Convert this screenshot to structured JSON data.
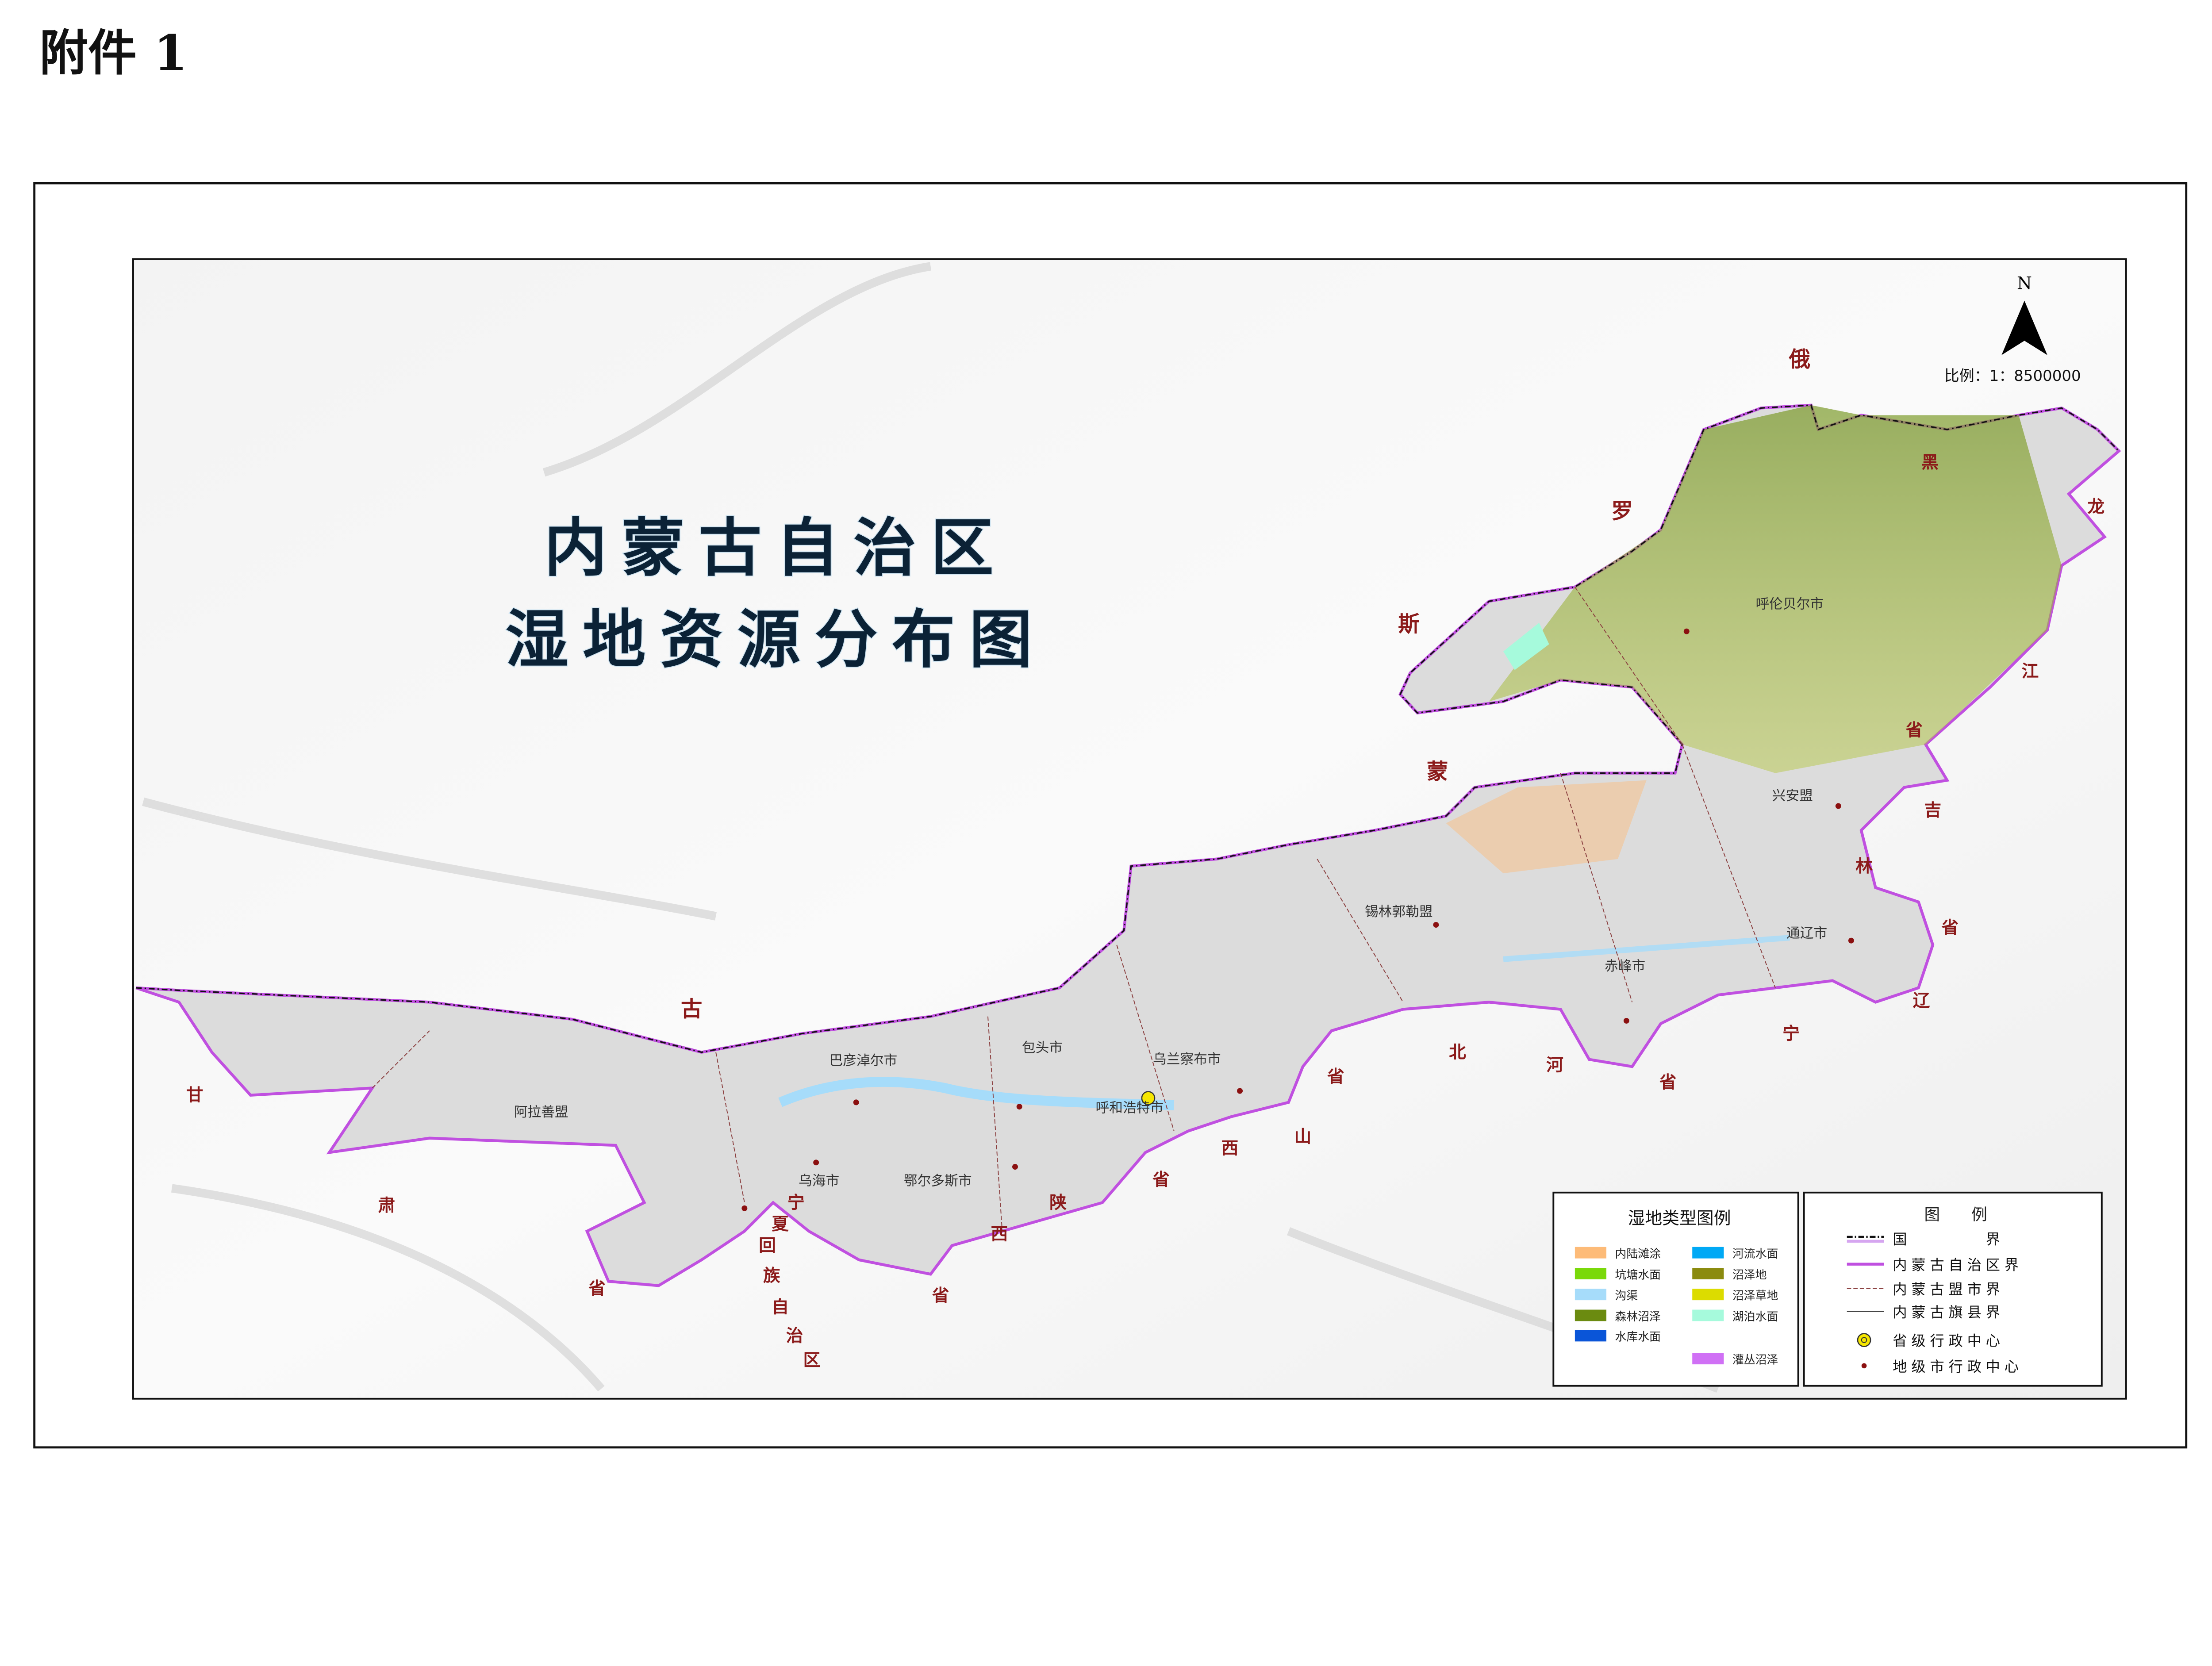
{
  "header": {
    "attachment_label": "附件 1"
  },
  "map": {
    "title_line1": "内蒙古自治区",
    "title_line2": "湿地资源分布图",
    "north_label": "N",
    "scale_text": "比例：1：8500000",
    "colors": {
      "region_fill": "#dcdcdc",
      "region_border": "#c050e0",
      "province_label": "#8b1a1a",
      "city_dot": "#8b1010",
      "capital": "#f5e600"
    },
    "neighbor_labels": [
      {
        "text": "俄"
      },
      {
        "text": "罗"
      },
      {
        "text": "斯"
      },
      {
        "text": "蒙"
      },
      {
        "text": "古"
      },
      {
        "text": "黑"
      },
      {
        "text": "龙"
      },
      {
        "text": "江"
      },
      {
        "text": "省"
      },
      {
        "text": "吉"
      },
      {
        "text": "林"
      },
      {
        "text": "省"
      },
      {
        "text": "辽"
      },
      {
        "text": "宁"
      },
      {
        "text": "省"
      },
      {
        "text": "河"
      },
      {
        "text": "北"
      },
      {
        "text": "省"
      },
      {
        "text": "山"
      },
      {
        "text": "西"
      },
      {
        "text": "省"
      },
      {
        "text": "陕"
      },
      {
        "text": "西"
      },
      {
        "text": "省"
      },
      {
        "text": "宁"
      },
      {
        "text": "夏"
      },
      {
        "text": "回"
      },
      {
        "text": "族"
      },
      {
        "text": "自"
      },
      {
        "text": "治"
      },
      {
        "text": "区"
      },
      {
        "text": "甘"
      },
      {
        "text": "肃"
      },
      {
        "text": "省"
      }
    ],
    "cities": [
      {
        "name": "呼伦贝尔市",
        "type": "prefecture"
      },
      {
        "name": "兴安盟",
        "type": "prefecture"
      },
      {
        "name": "锡林郭勒盟",
        "type": "prefecture"
      },
      {
        "name": "通辽市",
        "type": "prefecture"
      },
      {
        "name": "赤峰市",
        "type": "prefecture"
      },
      {
        "name": "乌兰察布市",
        "type": "prefecture"
      },
      {
        "name": "包头市",
        "type": "prefecture"
      },
      {
        "name": "巴彦淖尔市",
        "type": "prefecture"
      },
      {
        "name": "呼和浩特市",
        "type": "provincial"
      },
      {
        "name": "阿拉善盟",
        "type": "prefecture"
      },
      {
        "name": "乌海市",
        "type": "prefecture"
      },
      {
        "name": "鄂尔多斯市",
        "type": "prefecture"
      }
    ]
  },
  "wetland_legend": {
    "title": "湿地类型图例",
    "items": [
      {
        "label": "内陆滩涂",
        "color": "#fdbb78"
      },
      {
        "label": "河流水面",
        "color": "#00a9f5"
      },
      {
        "label": "坑塘水面",
        "color": "#7ad90a"
      },
      {
        "label": "沼泽地",
        "color": "#8b8b0f"
      },
      {
        "label": "沟渠",
        "color": "#a6dcfa"
      },
      {
        "label": "沼泽草地",
        "color": "#dcdc00"
      },
      {
        "label": "森林沼泽",
        "color": "#6b8b10"
      },
      {
        "label": "湖泊水面",
        "color": "#a6fadc"
      },
      {
        "label": "水库水面",
        "color": "#0a55d8"
      },
      {
        "label": "灌丛沼泽",
        "color": "#d070f5"
      }
    ]
  },
  "map_legend": {
    "title": "图　　例",
    "items": [
      {
        "label": "国　　　　界",
        "symbol": "national-border"
      },
      {
        "label": "内蒙古自治区界",
        "symbol": "region-border"
      },
      {
        "label": "内蒙古盟市界",
        "symbol": "league-border"
      },
      {
        "label": "内蒙古旗县界",
        "symbol": "county-border"
      },
      {
        "label": "省级行政中心",
        "symbol": "provincial-center"
      },
      {
        "label": "地级市行政中心",
        "symbol": "prefecture-center"
      }
    ]
  }
}
